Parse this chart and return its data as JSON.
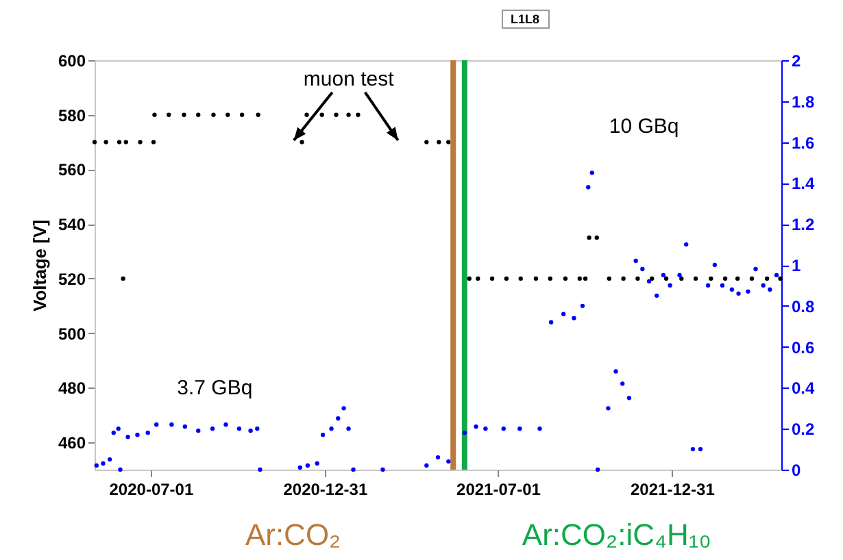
{
  "chart_data": {
    "type": "scatter",
    "title": "L1L8",
    "ylabel": "Voltage [V]",
    "marker": "circle",
    "grid": false,
    "xlim": [
      "2020-05-03",
      "2022-04-25"
    ],
    "xticks": [
      "2020-07-01",
      "2020-12-31",
      "2021-07-01",
      "2021-12-31"
    ],
    "ylim": [
      450,
      600
    ],
    "yticks": [
      460,
      480,
      500,
      520,
      540,
      560,
      580,
      600
    ],
    "y2lim": [
      0,
      2
    ],
    "y2ticks": [
      0,
      0.2,
      0.4,
      0.6,
      0.8,
      1,
      1.2,
      1.4,
      1.6,
      1.8,
      2
    ],
    "series": [
      {
        "color": "#000000",
        "x": [
          "2020-05-03",
          "2020-05-15",
          "2020-05-29",
          "2020-06-02",
          "2020-06-05",
          "2020-06-20",
          "2020-07-04",
          "2020-07-05",
          "2020-07-20",
          "2020-08-05",
          "2020-08-20",
          "2020-09-05",
          "2020-09-20",
          "2020-10-05",
          "2020-10-22",
          "2020-12-07",
          "2020-12-12",
          "2020-12-28",
          "2021-01-12",
          "2021-01-25",
          "2021-02-04",
          "2021-04-17",
          "2021-04-30",
          "2021-05-10",
          "2021-06-01",
          "2021-06-10",
          "2021-06-25",
          "2021-07-10",
          "2021-07-25",
          "2021-08-10",
          "2021-08-25",
          "2021-09-10",
          "2021-09-25",
          "2021-10-01",
          "2021-10-05",
          "2021-10-13",
          "2021-10-26",
          "2021-11-10",
          "2021-11-25",
          "2021-12-10",
          "2021-12-25",
          "2022-01-10",
          "2022-01-25",
          "2022-02-10",
          "2022-02-25",
          "2022-03-10",
          "2022-03-25",
          "2022-04-10",
          "2022-04-24"
        ],
        "values": [
          570,
          570,
          570,
          520,
          570,
          570,
          570,
          580,
          580,
          580,
          580,
          580,
          580,
          580,
          580,
          570,
          580,
          580,
          580,
          580,
          580,
          570,
          570,
          570,
          520,
          520,
          520,
          520,
          520,
          520,
          520,
          520,
          520,
          520,
          535,
          535,
          520,
          520,
          520,
          520,
          520,
          520,
          520,
          520,
          520,
          520,
          520,
          520,
          520
        ]
      },
      {
        "color": "#0000ff",
        "axis": "y2",
        "x": [
          "2020-05-05",
          "2020-05-12",
          "2020-05-19",
          "2020-05-23",
          "2020-05-28",
          "2020-05-30",
          "2020-06-07",
          "2020-06-17",
          "2020-06-28",
          "2020-07-07",
          "2020-07-23",
          "2020-08-06",
          "2020-08-20",
          "2020-09-04",
          "2020-09-18",
          "2020-10-02",
          "2020-10-14",
          "2020-10-21",
          "2020-10-24",
          "2020-12-05",
          "2020-12-13",
          "2020-12-23",
          "2020-12-29",
          "2021-01-07",
          "2021-01-14",
          "2021-01-20",
          "2021-01-25",
          "2021-01-30",
          "2021-03-02",
          "2021-04-17",
          "2021-04-29",
          "2021-05-10",
          "2021-05-27",
          "2021-06-08",
          "2021-06-18",
          "2021-07-07",
          "2021-07-24",
          "2021-08-14",
          "2021-08-26",
          "2021-09-08",
          "2021-09-19",
          "2021-09-28",
          "2021-10-04",
          "2021-10-08",
          "2021-10-14",
          "2021-10-25",
          "2021-11-02",
          "2021-11-09",
          "2021-11-16",
          "2021-11-23",
          "2021-11-30",
          "2021-12-07",
          "2021-12-15",
          "2021-12-22",
          "2021-12-29",
          "2022-01-08",
          "2022-01-15",
          "2022-01-22",
          "2022-01-30",
          "2022-02-07",
          "2022-02-14",
          "2022-02-22",
          "2022-03-04",
          "2022-03-11",
          "2022-03-21",
          "2022-03-29",
          "2022-04-06",
          "2022-04-13",
          "2022-04-20"
        ],
        "values": [
          0.02,
          0.03,
          0.05,
          0.18,
          0.2,
          0,
          0.16,
          0.17,
          0.18,
          0.22,
          0.22,
          0.21,
          0.19,
          0.2,
          0.22,
          0.2,
          0.19,
          0.2,
          0,
          0.01,
          0.02,
          0.03,
          0.17,
          0.2,
          0.25,
          0.3,
          0.2,
          0,
          0,
          0.02,
          0.06,
          0.04,
          0.18,
          0.21,
          0.2,
          0.2,
          0.2,
          0.2,
          0.72,
          0.76,
          0.74,
          0.8,
          1.38,
          1.45,
          0,
          0.3,
          0.48,
          0.42,
          0.35,
          1.02,
          0.98,
          0.92,
          0.85,
          0.95,
          0.9,
          0.95,
          1.1,
          0.1,
          0.1,
          0.9,
          1,
          0.9,
          0.88,
          0.86,
          0.87,
          0.98,
          0.9,
          0.88,
          0.95
        ]
      }
    ],
    "ref_lines": [
      {
        "axis": "x",
        "value": "2021-05-15",
        "label": "Ar:CO₂",
        "color": "#bb7a3a"
      },
      {
        "axis": "x",
        "value": "2021-05-27",
        "label": "Ar:CO₂:iC₄H₁₀",
        "color": "#12a84a"
      }
    ],
    "annotations": [
      "muon test",
      "3.7 GBq",
      "10 GBq"
    ]
  }
}
